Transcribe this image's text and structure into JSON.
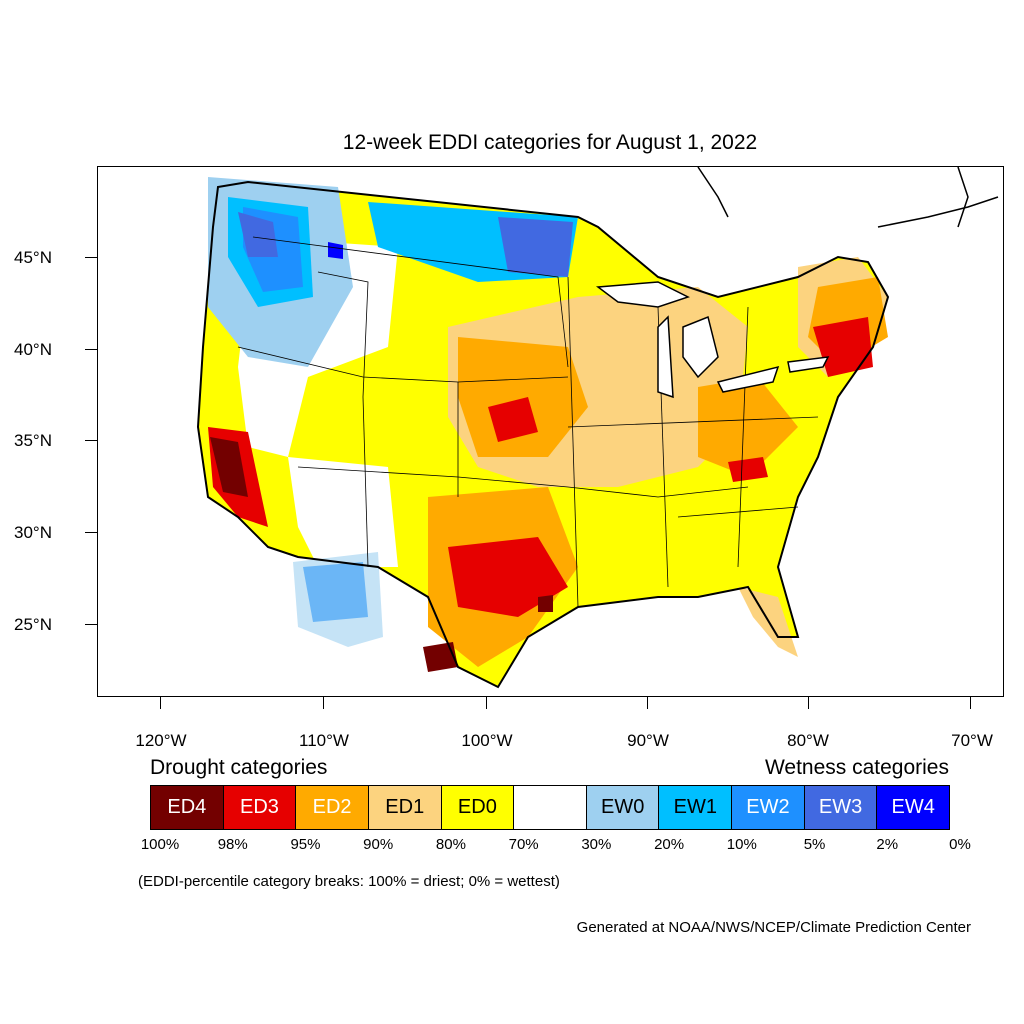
{
  "title": "12-week EDDI categories for August 1, 2022",
  "lat_labels": [
    "45°N",
    "40°N",
    "35°N",
    "30°N",
    "25°N"
  ],
  "lon_labels": [
    "120°W",
    "110°W",
    "100°W",
    "90°W",
    "80°W",
    "70°W"
  ],
  "legend": {
    "drought_heading": "Drought categories",
    "wetness_heading": "Wetness categories",
    "categories": [
      {
        "label": "ED4",
        "color": "#730000",
        "text_color": "#ffffff"
      },
      {
        "label": "ED3",
        "color": "#e60000",
        "text_color": "#ffffff"
      },
      {
        "label": "ED2",
        "color": "#ffaa00",
        "text_color": "#ffffff"
      },
      {
        "label": "ED1",
        "color": "#fcd37f",
        "text_color": "#000000"
      },
      {
        "label": "ED0",
        "color": "#ffff00",
        "text_color": "#000000"
      },
      {
        "label": "",
        "color": "#ffffff",
        "text_color": "#000000"
      },
      {
        "label": "EW0",
        "color": "#9ed0f0",
        "text_color": "#000000"
      },
      {
        "label": "EW1",
        "color": "#00bfff",
        "text_color": "#000000"
      },
      {
        "label": "EW2",
        "color": "#1e90ff",
        "text_color": "#ffffff"
      },
      {
        "label": "EW3",
        "color": "#4169e1",
        "text_color": "#ffffff"
      },
      {
        "label": "EW4",
        "color": "#0000ff",
        "text_color": "#ffffff"
      }
    ],
    "breaks": [
      "100%",
      "98%",
      "95%",
      "90%",
      "80%",
      "70%",
      "30%",
      "20%",
      "10%",
      "5%",
      "2%",
      "0%"
    ]
  },
  "note": "(EDDI-percentile category breaks: 100% = driest; 0% = wettest)",
  "credit": "Generated at NOAA/NWS/NCEP/Climate Prediction Center"
}
